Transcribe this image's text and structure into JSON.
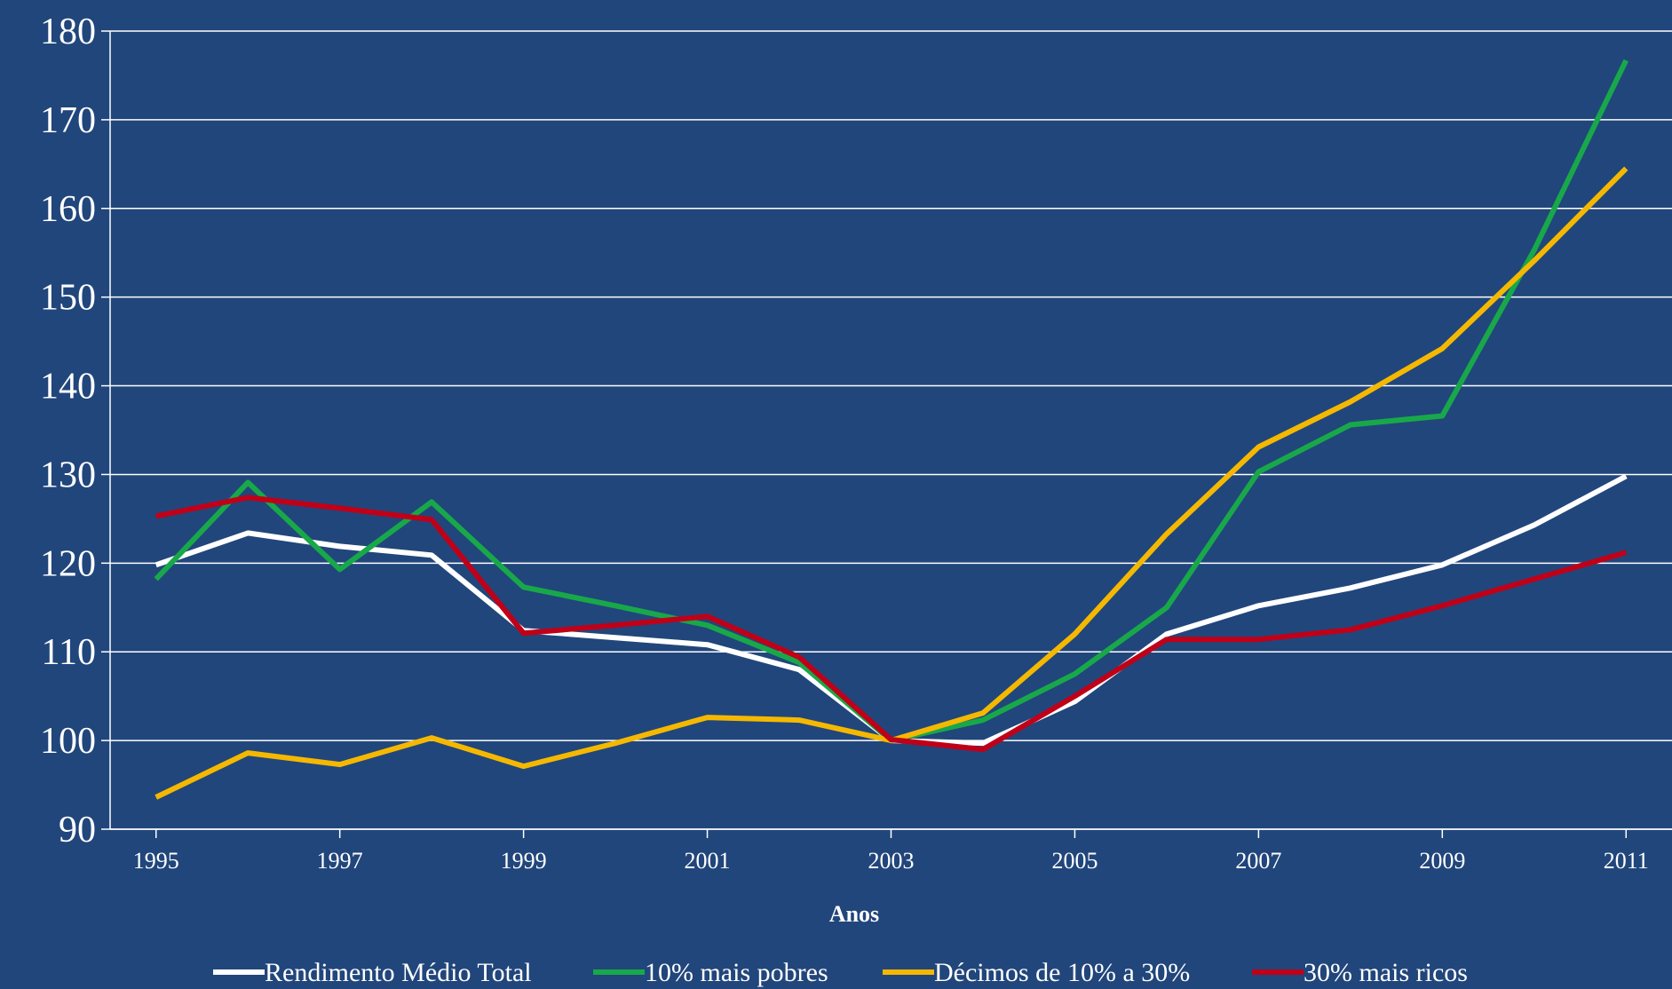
{
  "chart_data": {
    "type": "line",
    "x_label": "Anos",
    "x": [
      1995,
      1996,
      1997,
      1998,
      1999,
      2000,
      2001,
      2002,
      2003,
      2004,
      2005,
      2006,
      2007,
      2008,
      2009,
      2010,
      2011
    ],
    "xlim": [
      1994.5,
      2011.5
    ],
    "xticks": [
      1995,
      1997,
      1999,
      2001,
      2003,
      2005,
      2007,
      2009,
      2011
    ],
    "ylim": [
      90,
      180
    ],
    "yticks": [
      90,
      100,
      110,
      120,
      130,
      140,
      150,
      160,
      170,
      180
    ],
    "grid": true,
    "legend": "bottom",
    "series": [
      {
        "name": "Rendimento Médio Total",
        "color": "#ffffff",
        "values": [
          119.8,
          123.4,
          121.9,
          120.9,
          112.4,
          111.6,
          110.8,
          108.0,
          100,
          99.7,
          104.4,
          112.0,
          115.2,
          117.2,
          119.8,
          124.3,
          129.8
        ]
      },
      {
        "name": "10% mais pobres",
        "color": "#18a84a",
        "values": [
          118.2,
          129.1,
          119.3,
          126.9,
          117.3,
          115.2,
          113.0,
          108.8,
          100,
          102.3,
          107.5,
          115.0,
          130.3,
          135.6,
          136.6,
          155.3,
          176.7
        ]
      },
      {
        "name": "Décimos de 10% a 30%",
        "color": "#f5b800",
        "values": [
          93.6,
          98.6,
          97.3,
          100.3,
          97.1,
          99.7,
          102.6,
          102.3,
          100,
          103.1,
          112.0,
          123.3,
          133.1,
          138.2,
          144.2,
          154.1,
          164.5
        ]
      },
      {
        "name": "30% mais ricos",
        "color": "#c00018",
        "values": [
          125.3,
          127.4,
          126.2,
          124.9,
          112.1,
          113.0,
          114.0,
          109.4,
          100.1,
          99.0,
          105.0,
          111.4,
          111.4,
          112.5,
          115.2,
          118.2,
          121.2
        ]
      }
    ]
  }
}
